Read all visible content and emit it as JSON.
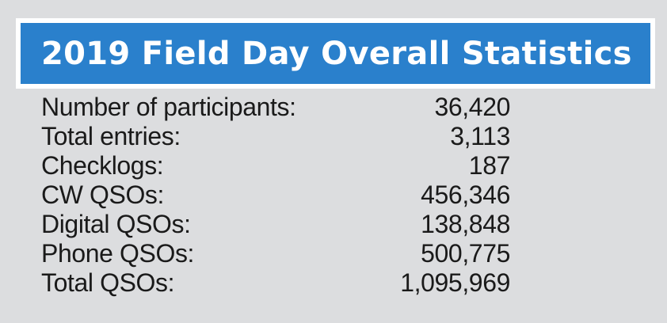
{
  "header": {
    "title": "2019 Field Day Overall Statistics",
    "background_color": "#2a80cc",
    "text_color": "#ffffff"
  },
  "stats": [
    {
      "label": "Number of participants:",
      "value": "36,420"
    },
    {
      "label": "Total entries:",
      "value": "3,113"
    },
    {
      "label": "Checklogs:",
      "value": "187"
    },
    {
      "label": "CW QSOs:",
      "value": "456,346"
    },
    {
      "label": "Digital QSOs:",
      "value": "138,848"
    },
    {
      "label": "Phone QSOs:",
      "value": "500,775"
    },
    {
      "label": "Total QSOs:",
      "value": "1,095,969"
    }
  ]
}
